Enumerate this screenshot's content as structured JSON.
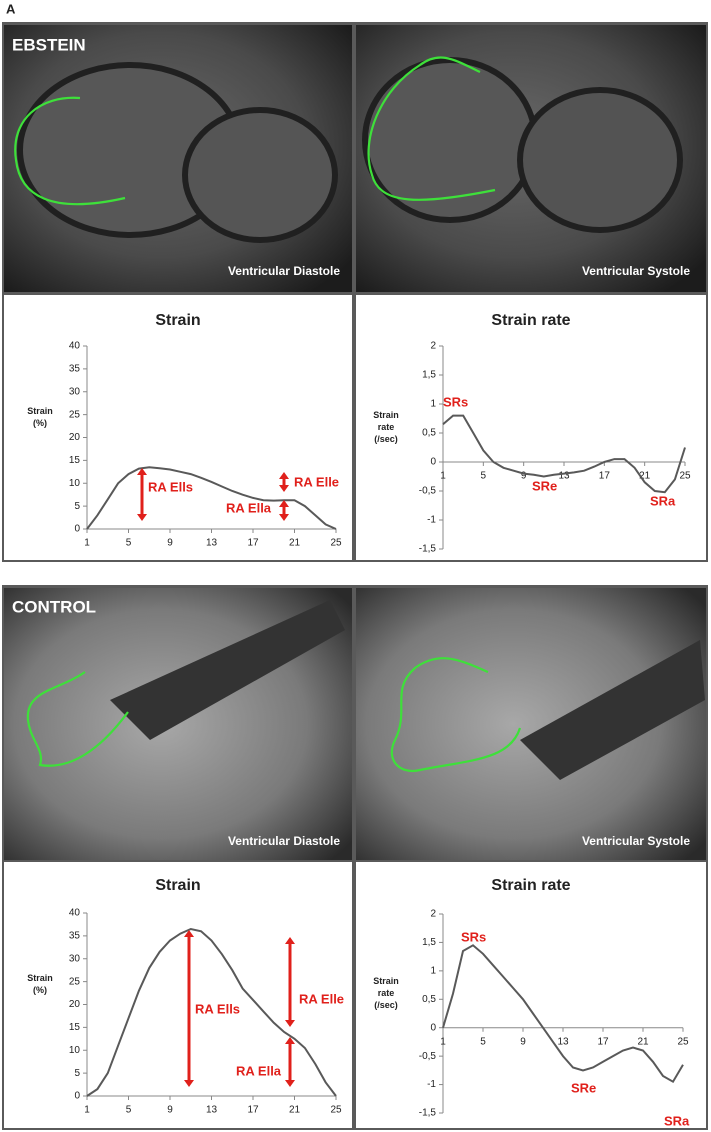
{
  "figure": {
    "panel_label": "A",
    "groups": [
      {
        "name": "EBSTEIN",
        "images": [
          "Ventricular Diastole",
          "Ventricular Systole"
        ]
      },
      {
        "name": "CONTROL",
        "images": [
          "Ventricular Diastole",
          "Ventricular Systole"
        ]
      }
    ]
  },
  "chart_data": [
    {
      "type": "line",
      "title": "Strain",
      "ylabel": [
        "Strain",
        "(%)"
      ],
      "color": "#595959",
      "x": [
        1,
        2,
        3,
        4,
        5,
        6,
        7,
        8,
        9,
        10,
        11,
        12,
        13,
        14,
        15,
        16,
        17,
        18,
        19,
        20,
        21,
        22,
        23,
        24,
        25
      ],
      "values": [
        0,
        3,
        6.5,
        10,
        12,
        13.2,
        13.5,
        13.3,
        13,
        12.5,
        12,
        11.2,
        10.3,
        9.3,
        8.3,
        7.5,
        6.8,
        6.3,
        6.2,
        6.3,
        6.3,
        5,
        3,
        1,
        0
      ],
      "xlim": [
        1,
        25
      ],
      "xticks": [
        1,
        5,
        9,
        13,
        17,
        21,
        25
      ],
      "ylim": [
        0,
        40
      ],
      "yticks": [
        0,
        5,
        10,
        15,
        20,
        25,
        30,
        35,
        40
      ],
      "annotations": [
        "RA Ells",
        "RA Ella",
        "RA Elle"
      ]
    },
    {
      "type": "line",
      "title": "Strain rate",
      "ylabel": [
        "Strain",
        "rate",
        "(/sec)"
      ],
      "color": "#595959",
      "x": [
        1,
        2,
        3,
        4,
        5,
        6,
        7,
        8,
        9,
        10,
        11,
        12,
        13,
        14,
        15,
        16,
        17,
        18,
        19,
        20,
        21,
        22,
        23,
        24,
        25
      ],
      "values": [
        0.65,
        0.8,
        0.8,
        0.5,
        0.2,
        0,
        -0.1,
        -0.15,
        -0.2,
        -0.22,
        -0.25,
        -0.22,
        -0.2,
        -0.18,
        -0.15,
        -0.08,
        0,
        0.05,
        0.05,
        -0.1,
        -0.35,
        -0.5,
        -0.52,
        -0.3,
        0.25
      ],
      "xlim": [
        1,
        25
      ],
      "xticks": [
        1,
        5,
        9,
        13,
        17,
        21,
        25
      ],
      "ylim": [
        -1.5,
        2
      ],
      "yticks": [
        {
          "value": 2,
          "label": "2"
        },
        {
          "value": 1.5,
          "label": "1,5"
        },
        {
          "value": 1,
          "label": "1"
        },
        {
          "value": 0.5,
          "label": "0,5"
        },
        {
          "value": 0,
          "label": "0"
        },
        {
          "value": -0.5,
          "label": "-0,5"
        },
        {
          "value": -1,
          "label": "-1"
        },
        {
          "value": -1.5,
          "label": "-1,5"
        }
      ],
      "annotations": [
        "SRs",
        "SRe",
        "SRa"
      ]
    },
    {
      "type": "line",
      "title": "Strain",
      "ylabel": [
        "Strain",
        "(%)"
      ],
      "color": "#595959",
      "x": [
        1,
        2,
        3,
        4,
        5,
        6,
        7,
        8,
        9,
        10,
        11,
        12,
        13,
        14,
        15,
        16,
        17,
        18,
        19,
        20,
        21,
        22,
        23,
        24,
        25
      ],
      "values": [
        0,
        1.5,
        5,
        11,
        17,
        23,
        28,
        31.5,
        34,
        35.5,
        36.5,
        36,
        34,
        31,
        27.5,
        23.5,
        21,
        18.5,
        16,
        14,
        12.5,
        10.5,
        7,
        3,
        0
      ],
      "xlim": [
        1,
        25
      ],
      "xticks": [
        1,
        5,
        9,
        13,
        17,
        21,
        25
      ],
      "ylim": [
        0,
        40
      ],
      "yticks": [
        0,
        5,
        10,
        15,
        20,
        25,
        30,
        35,
        40
      ],
      "annotations": [
        "RA Ells",
        "RA Elle",
        "RA Ella"
      ]
    },
    {
      "type": "line",
      "title": "Strain rate",
      "ylabel": [
        "Strain",
        "rate",
        "(/sec)"
      ],
      "color": "#595959",
      "x": [
        1,
        2,
        3,
        4,
        5,
        6,
        7,
        8,
        9,
        10,
        11,
        12,
        13,
        14,
        15,
        16,
        17,
        18,
        19,
        20,
        21,
        22,
        23,
        24,
        25
      ],
      "values": [
        0,
        0.6,
        1.35,
        1.45,
        1.3,
        1.1,
        0.9,
        0.7,
        0.5,
        0.25,
        0,
        -0.25,
        -0.5,
        -0.7,
        -0.75,
        -0.7,
        -0.6,
        -0.5,
        -0.4,
        -0.35,
        -0.4,
        -0.6,
        -0.85,
        -0.95,
        -0.65
      ],
      "xlim": [
        1,
        25
      ],
      "xticks": [
        1,
        5,
        9,
        13,
        17,
        21,
        25
      ],
      "ylim": [
        -1.5,
        2
      ],
      "yticks": [
        {
          "value": 2,
          "label": "2"
        },
        {
          "value": 1.5,
          "label": "1,5"
        },
        {
          "value": 1,
          "label": "1"
        },
        {
          "value": 0.5,
          "label": "0,5"
        },
        {
          "value": 0,
          "label": "0"
        },
        {
          "value": -0.5,
          "label": "-0,5"
        },
        {
          "value": -1,
          "label": "-1"
        },
        {
          "value": -1.5,
          "label": "-1,5"
        }
      ],
      "annotations": [
        "SRs",
        "SRe",
        "SRa"
      ]
    }
  ]
}
